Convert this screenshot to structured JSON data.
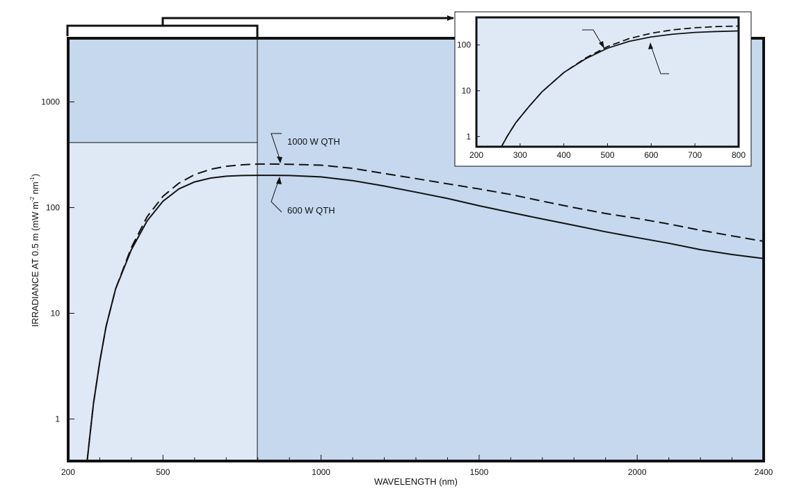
{
  "colors": {
    "plot_bg": "#c5d8ee",
    "highlight_bg": "#dfe9f6",
    "inset_bg": "#dfe9f6",
    "frame": "#111111",
    "curve": "#111111"
  },
  "chart_data": [
    {
      "type": "line",
      "title": "",
      "xlabel": "WAVELENGTH (nm)",
      "ylabel_main": "IRRADIANCE AT 0.5 m (mW m",
      "ylabel_sup1": "-2",
      "ylabel_mid": " nm",
      "ylabel_sup2": "-1",
      "ylabel_end": ")",
      "yscale": "log",
      "xlim": [
        200,
        2400
      ],
      "ylim": [
        0.4,
        4000
      ],
      "grid": false,
      "x_tick_labels": [
        "200",
        "500",
        "1000",
        "1500",
        "2000",
        "2400"
      ],
      "x_tick_values": [
        200,
        500,
        1000,
        1500,
        2000,
        2400
      ],
      "y_tick_labels": [
        "1",
        "10",
        "100",
        "1000"
      ],
      "y_tick_values": [
        1,
        10,
        100,
        1000
      ],
      "highlight_range": [
        200,
        800
      ],
      "annotations": [
        {
          "text": "1000 W QTH",
          "series": "1000 W QTH"
        },
        {
          "text": "600 W QTH",
          "series": "600 W QTH"
        }
      ],
      "series": [
        {
          "name": "1000 W QTH",
          "style": "dashed",
          "x": [
            260,
            270,
            280,
            300,
            320,
            350,
            400,
            450,
            500,
            550,
            600,
            650,
            700,
            750,
            800,
            850,
            900,
            1000,
            1100,
            1200,
            1300,
            1400,
            1500,
            1600,
            1700,
            1800,
            1900,
            2000,
            2100,
            2200,
            2300,
            2400
          ],
          "y": [
            0.4,
            0.75,
            1.4,
            3.5,
            7.5,
            17,
            42,
            82,
            128,
            170,
            205,
            230,
            246,
            254,
            258,
            258,
            257,
            252,
            235,
            210,
            188,
            168,
            150,
            133,
            115,
            100,
            88,
            79,
            70,
            61,
            54,
            48
          ]
        },
        {
          "name": "600 W QTH",
          "style": "solid",
          "x": [
            260,
            270,
            280,
            300,
            320,
            350,
            400,
            450,
            500,
            550,
            600,
            650,
            700,
            750,
            800,
            850,
            900,
            1000,
            1100,
            1200,
            1300,
            1400,
            1500,
            1600,
            1700,
            1800,
            1900,
            2000,
            2100,
            2200,
            2300,
            2400
          ],
          "y": [
            0.4,
            0.75,
            1.4,
            3.5,
            7.5,
            17,
            40,
            75,
            115,
            150,
            175,
            190,
            198,
            201,
            202,
            202,
            201,
            195,
            180,
            160,
            140,
            122,
            104,
            90,
            78,
            68,
            59,
            52,
            46,
            40,
            36,
            33
          ]
        }
      ]
    },
    {
      "type": "line",
      "title": "",
      "role": "inset",
      "yscale": "log",
      "xlim": [
        200,
        800
      ],
      "ylim": [
        0.6,
        400
      ],
      "grid": false,
      "x_tick_labels": [
        "200",
        "300",
        "400",
        "500",
        "600",
        "700",
        "800"
      ],
      "x_tick_values": [
        200,
        300,
        400,
        500,
        600,
        700,
        800
      ],
      "y_tick_labels": [
        "1",
        "10",
        "100"
      ],
      "y_tick_values": [
        1,
        10,
        100
      ],
      "series": [
        {
          "name": "1000 W QTH",
          "style": "dashed",
          "x": [
            255,
            270,
            290,
            320,
            350,
            400,
            450,
            500,
            550,
            600,
            650,
            700,
            750,
            800
          ],
          "y": [
            0.55,
            1.0,
            2.0,
            4.5,
            9.5,
            25,
            52,
            92,
            138,
            180,
            215,
            238,
            252,
            258
          ]
        },
        {
          "name": "600 W QTH",
          "style": "solid",
          "x": [
            255,
            270,
            290,
            320,
            350,
            400,
            450,
            500,
            550,
            600,
            650,
            700,
            750,
            800
          ],
          "y": [
            0.55,
            1.0,
            2.0,
            4.5,
            9.5,
            25,
            50,
            85,
            120,
            150,
            172,
            188,
            197,
            202
          ]
        }
      ]
    }
  ]
}
